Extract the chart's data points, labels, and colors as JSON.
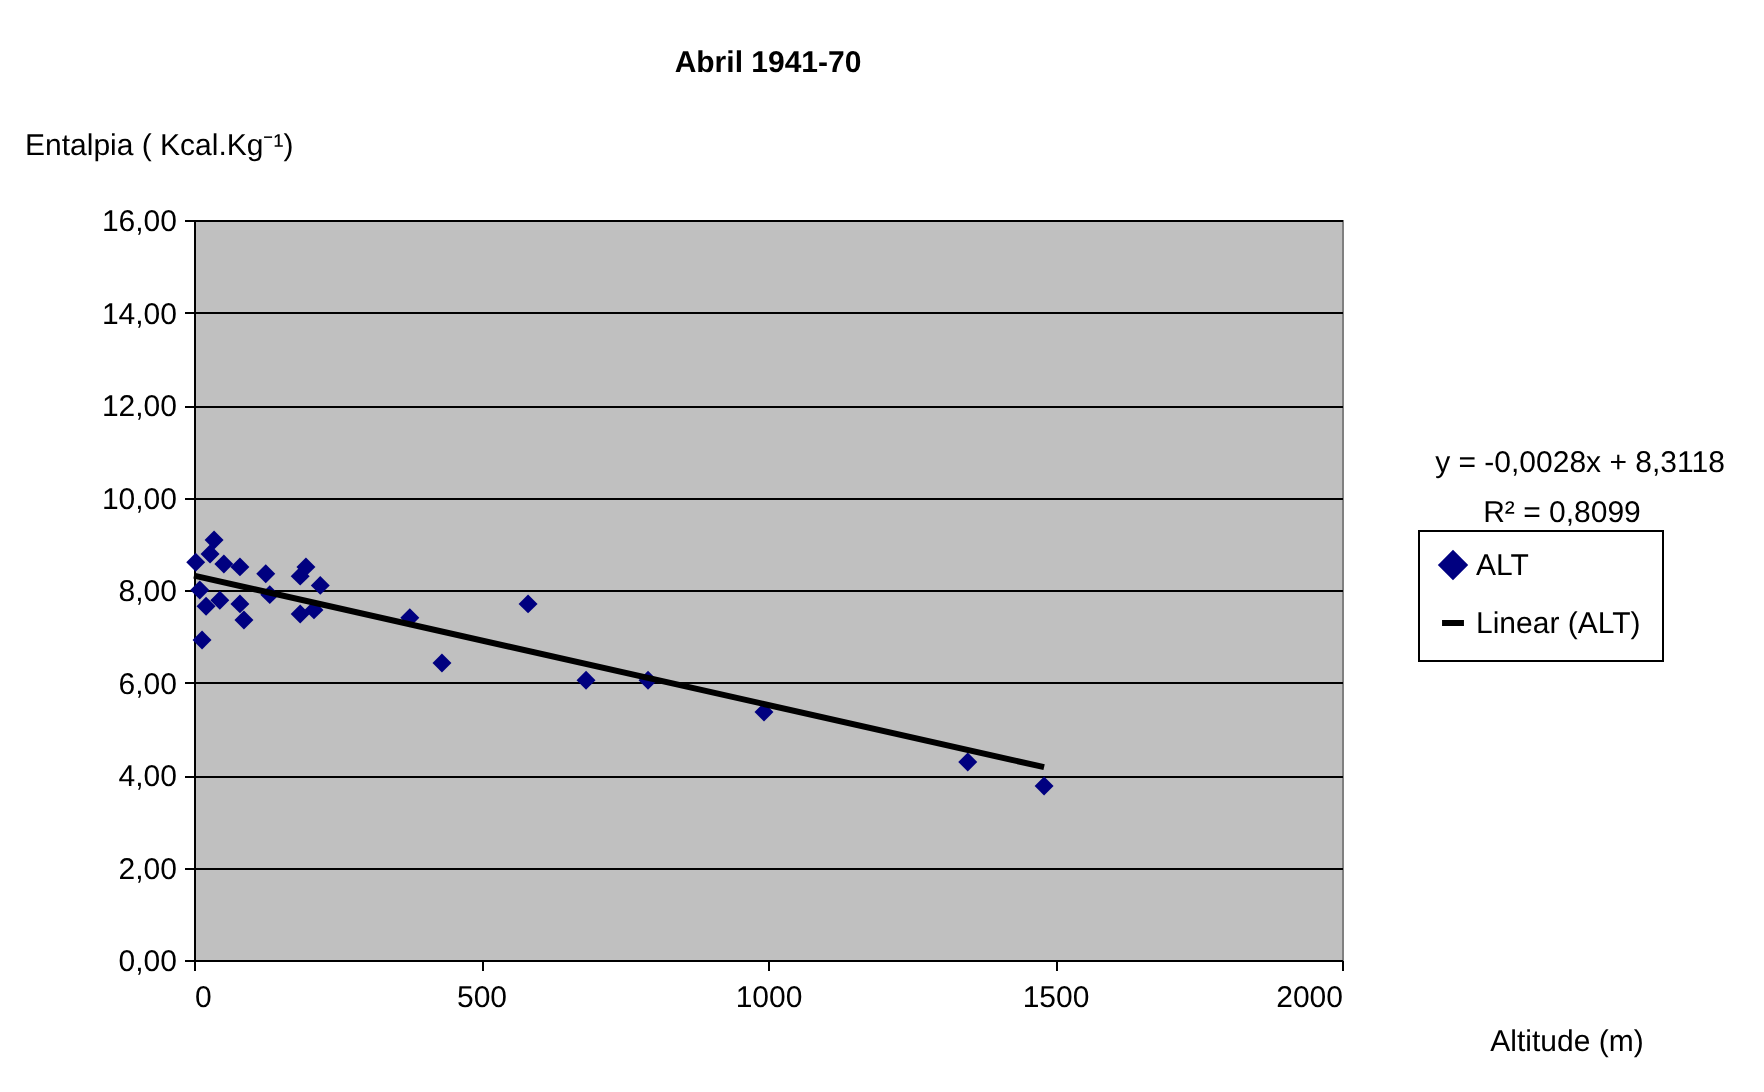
{
  "chart_data": {
    "type": "scatter",
    "title": "Abril 1941-70",
    "xlabel": "Altitude (m)",
    "ylabel": "Entalpia ( Kcal.Kg⁻¹)",
    "annotations": [
      "y = -0,0028x + 8,3118",
      "R² = 0,8099"
    ],
    "series": [
      {
        "name": "ALT",
        "color": "#000080",
        "marker": "diamond",
        "x": [
          35,
          3,
          28,
          52,
          80,
          125,
          195,
          220,
          185,
          132,
          21,
          10,
          87,
          80,
          45,
          185,
          209,
          14,
          376,
          432,
          582,
          683,
          791,
          993,
          1348,
          1481
        ],
        "values": [
          9.08,
          8.6,
          8.78,
          8.56,
          8.5,
          8.35,
          8.5,
          8.1,
          8.3,
          7.9,
          7.65,
          8.0,
          7.35,
          7.7,
          7.78,
          7.48,
          7.57,
          6.92,
          7.4,
          6.42,
          7.7,
          6.05,
          6.05,
          5.36,
          4.28,
          3.76
        ]
      },
      {
        "name": "Linear (ALT)",
        "type": "line",
        "color": "#000000",
        "x": [
          0,
          1481
        ],
        "values": [
          8.31,
          4.17
        ]
      }
    ],
    "xlim": [
      0,
      2000
    ],
    "xticks": [
      0,
      500,
      1000,
      1500,
      2000
    ],
    "ylim": [
      0,
      16
    ],
    "yticks": [
      {
        "value": 0,
        "label": "0,00"
      },
      {
        "value": 2,
        "label": "2,00"
      },
      {
        "value": 4,
        "label": "4,00"
      },
      {
        "value": 6,
        "label": "6,00"
      },
      {
        "value": 8,
        "label": "8,00"
      },
      {
        "value": 10,
        "label": "10,00"
      },
      {
        "value": 12,
        "label": "12,00"
      },
      {
        "value": 14,
        "label": "14,00"
      },
      {
        "value": 16,
        "label": "16,00"
      }
    ],
    "grid": "y",
    "legend": "right"
  }
}
